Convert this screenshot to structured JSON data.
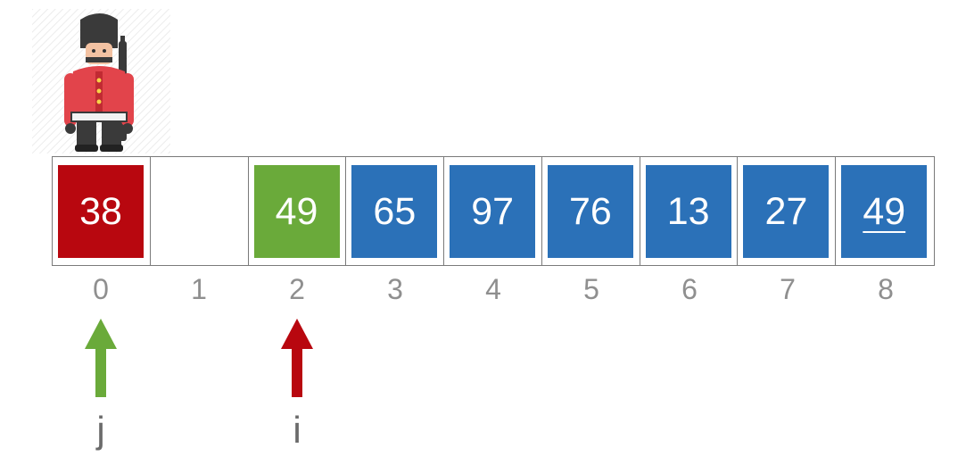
{
  "array": {
    "cells": [
      {
        "value": "38",
        "state": "red"
      },
      {
        "value": "",
        "state": "empty"
      },
      {
        "value": "49",
        "state": "green"
      },
      {
        "value": "65",
        "state": "blue"
      },
      {
        "value": "97",
        "state": "blue"
      },
      {
        "value": "76",
        "state": "blue"
      },
      {
        "value": "13",
        "state": "blue"
      },
      {
        "value": "27",
        "state": "blue"
      },
      {
        "value": "49",
        "state": "blue",
        "underlined": true
      }
    ],
    "indices": [
      "0",
      "1",
      "2",
      "3",
      "4",
      "5",
      "6",
      "7",
      "8"
    ]
  },
  "pointers": {
    "j": {
      "label": "j",
      "index": 0,
      "color": "#6aaa3a"
    },
    "i": {
      "label": "i",
      "index": 2,
      "color": "#b8070f"
    }
  },
  "colors": {
    "red": "#b8070f",
    "green": "#6aaa3a",
    "blue": "#2b71b8"
  },
  "icons": {
    "sentinel": "royal-guard-icon"
  }
}
